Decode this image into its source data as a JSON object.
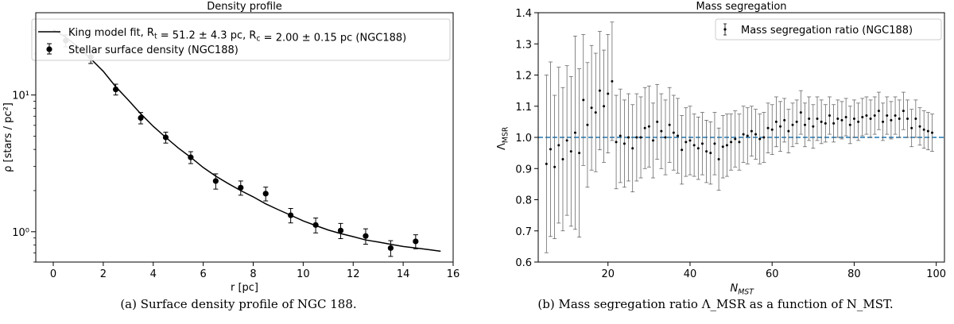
{
  "chart_data": [
    {
      "type": "scatter",
      "title": "Density profile",
      "xlabel": "r [pc]",
      "ylabel": "ρ [stars / pc²]",
      "xlim": [
        -0.7,
        16
      ],
      "ylim": [
        0.6,
        40
      ],
      "yscale": "log",
      "x_ticks": [
        0,
        2,
        4,
        6,
        8,
        10,
        12,
        14,
        16
      ],
      "y_ticks": [
        {
          "value": 1,
          "label": "10⁰"
        },
        {
          "value": 10,
          "label": "10¹"
        }
      ],
      "grid": false,
      "legend_position": "top-right",
      "series": [
        {
          "name": "Stellar surface density (NGC188)",
          "kind": "points_errorbars",
          "x": [
            0.5,
            1.5,
            2.5,
            3.5,
            4.5,
            5.5,
            6.5,
            7.5,
            8.5,
            9.5,
            10.5,
            11.5,
            12.5,
            13.5,
            14.5
          ],
          "y": [
            25.0,
            19.0,
            11.0,
            6.8,
            4.9,
            3.5,
            2.35,
            2.1,
            1.9,
            1.32,
            1.12,
            1.02,
            0.93,
            0.76,
            0.85
          ],
          "yerr": [
            2.5,
            2.0,
            1.0,
            0.65,
            0.45,
            0.35,
            0.3,
            0.25,
            0.22,
            0.16,
            0.14,
            0.13,
            0.12,
            0.1,
            0.1
          ]
        },
        {
          "name": "King model fit, R_t = 51.2 ± 4.3 pc, R_c = 2.00 ± 0.15 pc (NGC188)",
          "kind": "line",
          "x": [
            0,
            0.5,
            1,
            1.5,
            2,
            2.5,
            3,
            3.5,
            4,
            4.5,
            5,
            5.5,
            6,
            6.5,
            7,
            7.5,
            8,
            8.5,
            9,
            9.5,
            10,
            10.5,
            11,
            11.5,
            12,
            12.5,
            13,
            13.5,
            14,
            14.5,
            15,
            15.5
          ],
          "y": [
            30.0,
            26.5,
            22.4,
            18.4,
            14.9,
            11.5,
            9.2,
            7.3,
            5.9,
            4.9,
            4.1,
            3.5,
            2.95,
            2.55,
            2.25,
            2.0,
            1.8,
            1.6,
            1.45,
            1.32,
            1.2,
            1.11,
            1.03,
            0.97,
            0.92,
            0.87,
            0.84,
            0.81,
            0.78,
            0.76,
            0.74,
            0.72
          ]
        }
      ]
    },
    {
      "type": "scatter",
      "title": "Mass segregation",
      "xlabel": "N_MST",
      "ylabel": "Λ_MSR",
      "xlim": [
        3,
        102
      ],
      "ylim": [
        0.6,
        1.4
      ],
      "x_ticks": [
        20,
        40,
        60,
        80,
        100
      ],
      "y_ticks": [
        0.6,
        0.7,
        0.8,
        0.9,
        1.0,
        1.1,
        1.2,
        1.3,
        1.4
      ],
      "grid": false,
      "legend_position": "top-right",
      "reference_line": {
        "y": 1.0,
        "style": "dashed",
        "color": "#1f77b4"
      },
      "series": [
        {
          "name": "Mass segregation ratio (NGC188)",
          "kind": "points_errorbars",
          "x": [
            5,
            6,
            7,
            8,
            9,
            10,
            11,
            12,
            13,
            14,
            15,
            16,
            17,
            18,
            19,
            20,
            21,
            22,
            23,
            24,
            25,
            26,
            27,
            28,
            29,
            30,
            31,
            32,
            33,
            34,
            35,
            36,
            37,
            38,
            39,
            40,
            41,
            42,
            43,
            44,
            45,
            46,
            47,
            48,
            49,
            50,
            51,
            52,
            53,
            54,
            55,
            56,
            57,
            58,
            59,
            60,
            61,
            62,
            63,
            64,
            65,
            66,
            67,
            68,
            69,
            70,
            71,
            72,
            73,
            74,
            75,
            76,
            77,
            78,
            79,
            80,
            81,
            82,
            83,
            84,
            85,
            86,
            87,
            88,
            89,
            90,
            91,
            92,
            93,
            94,
            95,
            96,
            97,
            98,
            99
          ],
          "y": [
            0.915,
            0.962,
            0.905,
            0.975,
            0.93,
            0.99,
            0.955,
            1.015,
            0.95,
            1.12,
            1.04,
            1.095,
            1.08,
            1.15,
            1.1,
            1.14,
            1.18,
            0.985,
            1.005,
            0.98,
            1.0,
            0.965,
            1.0,
            1.0,
            1.03,
            1.035,
            0.99,
            1.05,
            1.02,
            1.0,
            1.04,
            1.015,
            1.005,
            0.96,
            0.985,
            0.99,
            0.975,
            0.965,
            0.98,
            0.955,
            0.95,
            0.98,
            0.93,
            0.97,
            0.975,
            0.985,
            0.995,
            0.985,
            1.01,
            1.005,
            1.02,
            1.01,
            0.995,
            1.0,
            1.03,
            1.025,
            1.05,
            1.035,
            1.055,
            1.02,
            1.04,
            1.05,
            1.08,
            1.04,
            1.06,
            1.035,
            1.06,
            1.05,
            1.045,
            1.07,
            1.045,
            1.06,
            1.055,
            1.065,
            1.04,
            1.06,
            1.05,
            1.065,
            1.07,
            1.06,
            1.07,
            1.085,
            1.05,
            1.07,
            1.055,
            1.07,
            1.06,
            1.085,
            1.06,
            1.03,
            1.06,
            1.035,
            1.025,
            1.02,
            1.015
          ],
          "yerr": [
            0.285,
            0.28,
            0.23,
            0.25,
            0.23,
            0.24,
            0.24,
            0.31,
            0.27,
            0.21,
            0.2,
            0.2,
            0.19,
            0.19,
            0.18,
            0.19,
            0.19,
            0.15,
            0.15,
            0.14,
            0.14,
            0.14,
            0.14,
            0.13,
            0.13,
            0.13,
            0.12,
            0.12,
            0.12,
            0.12,
            0.12,
            0.12,
            0.12,
            0.11,
            0.11,
            0.11,
            0.1,
            0.1,
            0.1,
            0.1,
            0.1,
            0.1,
            0.1,
            0.1,
            0.1,
            0.09,
            0.09,
            0.09,
            0.09,
            0.09,
            0.08,
            0.08,
            0.08,
            0.08,
            0.08,
            0.08,
            0.08,
            0.08,
            0.07,
            0.07,
            0.07,
            0.07,
            0.07,
            0.07,
            0.07,
            0.07,
            0.07,
            0.07,
            0.06,
            0.06,
            0.06,
            0.06,
            0.06,
            0.06,
            0.06,
            0.06,
            0.06,
            0.06,
            0.06,
            0.06,
            0.06,
            0.06,
            0.06,
            0.06,
            0.06,
            0.06,
            0.06,
            0.06,
            0.06,
            0.06,
            0.06,
            0.06,
            0.06,
            0.06,
            0.06
          ]
        }
      ]
    }
  ],
  "captions": {
    "a": "(a) Surface density profile of NGC 188.",
    "b": "(b) Mass segregation ratio Λ_MSR as a function of N_MST."
  }
}
